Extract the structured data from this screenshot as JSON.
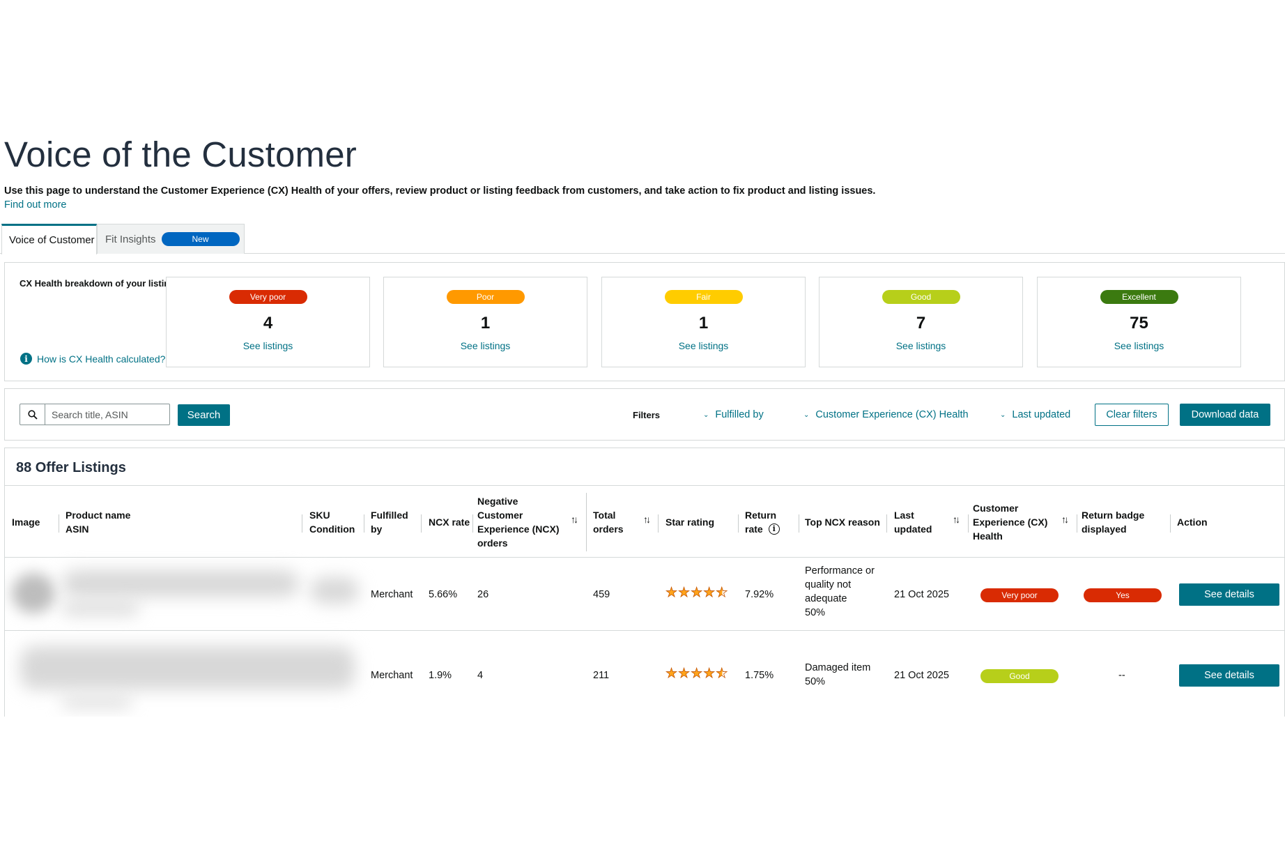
{
  "page": {
    "title": "Voice of the Customer",
    "description": "Use this page to understand the Customer Experience (CX) Health of your offers, review product or listing feedback from customers, and take action to fix product and listing issues.",
    "find_out_more": "Find out more"
  },
  "tabs": [
    {
      "label": "Voice of Customer",
      "active": true
    },
    {
      "label": "Fit Insights",
      "badge": "New",
      "active": false
    }
  ],
  "cx_health": {
    "heading": "CX Health breakdown of your listings",
    "how_calculated": "How is CX Health calculated?",
    "cards": [
      {
        "status": "Very poor",
        "count": "4",
        "link": "See listings",
        "color": "#d92b03"
      },
      {
        "status": "Poor",
        "count": "1",
        "link": "See listings",
        "color": "#ff9900"
      },
      {
        "status": "Fair",
        "count": "1",
        "link": "See listings",
        "color": "#ffcc00"
      },
      {
        "status": "Good",
        "count": "7",
        "link": "See listings",
        "color": "#b7cf1a"
      },
      {
        "status": "Excellent",
        "count": "75",
        "link": "See listings",
        "color": "#3b7a10"
      }
    ]
  },
  "filters": {
    "search_placeholder": "Search title, ASIN",
    "search_button": "Search",
    "label": "Filters",
    "dropdowns": [
      "Fulfilled by",
      "Customer Experience (CX) Health",
      "Last updated"
    ],
    "clear": "Clear filters",
    "download": "Download data"
  },
  "table": {
    "title": "88 Offer Listings",
    "headers": {
      "image": "Image",
      "product_name": "Product name",
      "asin": "ASIN",
      "sku": "SKU",
      "condition": "Condition",
      "fulfilled_1": "Fulfilled",
      "fulfilled_2": "by",
      "ncx_rate": "NCX rate",
      "ncx_orders_1": "Negative",
      "ncx_orders_2": "Customer",
      "ncx_orders_3": "Experience (NCX)",
      "ncx_orders_4": "orders",
      "total_1": "Total",
      "total_2": "orders",
      "star_rating": "Star rating",
      "return_1": "Return",
      "return_2": "rate",
      "top_reason": "Top NCX reason",
      "last_1": "Last",
      "last_2": "updated",
      "cx_1": "Customer",
      "cx_2": "Experience (CX)",
      "cx_3": "Health",
      "badge_1": "Return badge",
      "badge_2": "displayed",
      "action": "Action"
    },
    "rows": [
      {
        "fulfilled_by": "Merchant",
        "ncx_rate": "5.66%",
        "ncx_orders": "26",
        "total_orders": "459",
        "star_rating": 4.5,
        "return_rate": "7.92%",
        "top_reason_lines": [
          "Performance or",
          "quality not",
          "adequate",
          "50%"
        ],
        "last_updated": "21 Oct 2025",
        "cx_health": "Very poor",
        "cx_color": "#d92b03",
        "return_badge": "Yes",
        "return_badge_color": "#d92b03",
        "action": "See details"
      },
      {
        "fulfilled_by": "Merchant",
        "ncx_rate": "1.9%",
        "ncx_orders": "4",
        "total_orders": "211",
        "star_rating": 4.5,
        "return_rate": "1.75%",
        "top_reason_lines": [
          "Damaged item",
          "50%"
        ],
        "last_updated": "21 Oct 2025",
        "cx_health": "Good",
        "cx_color": "#b7cf1a",
        "return_badge": "--",
        "action": "See details"
      }
    ]
  }
}
